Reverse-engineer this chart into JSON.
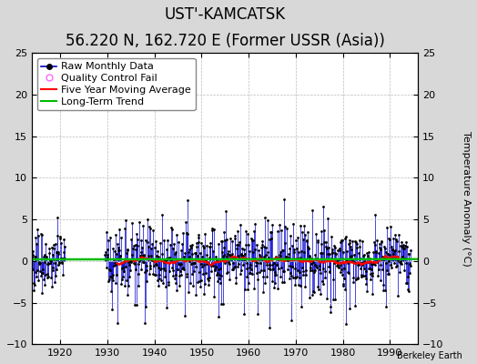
{
  "title": "UST'-KAMCATSK",
  "subtitle": "56.220 N, 162.720 E (Former USSR (Asia))",
  "ylabel": "Temperature Anomaly (°C)",
  "xlim": [
    1914,
    1996
  ],
  "ylim": [
    -10,
    25
  ],
  "yticks_left": [
    -10,
    -5,
    0,
    5,
    10,
    15,
    20,
    25
  ],
  "yticks_right": [
    -10,
    -5,
    0,
    5,
    10,
    15,
    20,
    25
  ],
  "xticks": [
    1920,
    1930,
    1940,
    1950,
    1960,
    1970,
    1980,
    1990
  ],
  "x_start_early": 1914.0,
  "x_end_early": 1921.0,
  "x_start_main": 1929.5,
  "x_end_main": 1994.5,
  "background_color": "#d8d8d8",
  "plot_bg_color": "#ffffff",
  "raw_line_color": "#0000cc",
  "raw_marker_color": "#000000",
  "ma_color": "#ff0000",
  "trend_color": "#00bb00",
  "qc_fail_color": "#ff66ff",
  "grid_color": "#bbbbbb",
  "seed": 77,
  "annotation": "Berkeley Earth",
  "title_fontsize": 12,
  "subtitle_fontsize": 9,
  "ylabel_fontsize": 8,
  "tick_fontsize": 8,
  "legend_fontsize": 8
}
